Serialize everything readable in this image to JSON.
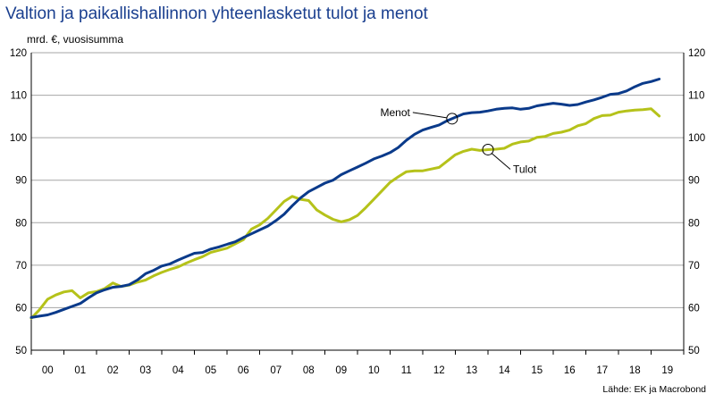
{
  "header": {
    "title": "Valtion ja paikallishallinnon yhteenlasketut tulot ja menot",
    "unit": "mrd. €, vuosisumma",
    "source": "Lähde: EK ja Macrobond"
  },
  "colors": {
    "menot": "#0a3a8a",
    "tulot": "#b5c21a",
    "grid": "#a6a6a6",
    "title": "#1a3f8f"
  },
  "chart_data": {
    "type": "line",
    "title": "Valtion ja paikallishallinnon yhteenlasketut tulot ja menot",
    "ylabel": "mrd. €, vuosisumma",
    "ylim": [
      50,
      120
    ],
    "yticks": [
      50,
      60,
      70,
      80,
      90,
      100,
      110,
      120
    ],
    "xlim": [
      2000,
      2020
    ],
    "xtick_labels": [
      "00",
      "01",
      "02",
      "03",
      "04",
      "05",
      "06",
      "07",
      "08",
      "09",
      "10",
      "11",
      "12",
      "13",
      "14",
      "15",
      "16",
      "17",
      "18",
      "19"
    ],
    "grid": true,
    "series": [
      {
        "name": "Menot",
        "x": [
          2000.0,
          2000.25,
          2000.5,
          2000.75,
          2001.0,
          2001.25,
          2001.5,
          2001.75,
          2002.0,
          2002.25,
          2002.5,
          2002.75,
          2003.0,
          2003.25,
          2003.5,
          2003.75,
          2004.0,
          2004.25,
          2004.5,
          2004.75,
          2005.0,
          2005.25,
          2005.5,
          2005.75,
          2006.0,
          2006.25,
          2006.5,
          2006.75,
          2007.0,
          2007.25,
          2007.5,
          2007.75,
          2008.0,
          2008.25,
          2008.5,
          2008.75,
          2009.0,
          2009.25,
          2009.5,
          2009.75,
          2010.0,
          2010.25,
          2010.5,
          2010.75,
          2011.0,
          2011.25,
          2011.5,
          2011.75,
          2012.0,
          2012.25,
          2012.5,
          2012.75,
          2013.0,
          2013.25,
          2013.5,
          2013.75,
          2014.0,
          2014.25,
          2014.5,
          2014.75,
          2015.0,
          2015.25,
          2015.5,
          2015.75,
          2016.0,
          2016.25,
          2016.5,
          2016.75,
          2017.0,
          2017.25,
          2017.5,
          2017.75,
          2018.0,
          2018.25,
          2018.5,
          2018.75,
          2019.0,
          2019.25
        ],
        "y": [
          57.7,
          58.0,
          58.3,
          58.9,
          59.6,
          60.3,
          61.0,
          62.3,
          63.5,
          64.2,
          64.8,
          65.0,
          65.4,
          66.5,
          68.0,
          68.8,
          69.8,
          70.3,
          71.2,
          72.0,
          72.8,
          73.0,
          73.8,
          74.3,
          74.9,
          75.5,
          76.5,
          77.4,
          78.3,
          79.2,
          80.5,
          82.0,
          84.0,
          85.8,
          87.3,
          88.3,
          89.3,
          90.0,
          91.3,
          92.2,
          93.1,
          94.0,
          95.0,
          95.7,
          96.5,
          97.7,
          99.4,
          100.8,
          101.8,
          102.4,
          103.0,
          104.0,
          104.8,
          105.6,
          105.9,
          106.0,
          106.3,
          106.7,
          106.9,
          107.0,
          106.7,
          106.9,
          107.5,
          107.8,
          108.1,
          107.9,
          107.6,
          107.8,
          108.4,
          108.9,
          109.5,
          110.2,
          110.4,
          111.0,
          112.0,
          112.8,
          113.2,
          113.8
        ]
      },
      {
        "name": "Tulot",
        "x": [
          2000.0,
          2000.25,
          2000.5,
          2000.75,
          2001.0,
          2001.25,
          2001.5,
          2001.75,
          2002.0,
          2002.25,
          2002.5,
          2002.75,
          2003.0,
          2003.25,
          2003.5,
          2003.75,
          2004.0,
          2004.25,
          2004.5,
          2004.75,
          2005.0,
          2005.25,
          2005.5,
          2005.75,
          2006.0,
          2006.25,
          2006.5,
          2006.75,
          2007.0,
          2007.25,
          2007.5,
          2007.75,
          2008.0,
          2008.25,
          2008.5,
          2008.75,
          2009.0,
          2009.25,
          2009.5,
          2009.75,
          2010.0,
          2010.25,
          2010.5,
          2010.75,
          2011.0,
          2011.25,
          2011.5,
          2011.75,
          2012.0,
          2012.25,
          2012.5,
          2012.75,
          2013.0,
          2013.25,
          2013.5,
          2013.75,
          2014.0,
          2014.25,
          2014.5,
          2014.75,
          2015.0,
          2015.25,
          2015.5,
          2015.75,
          2016.0,
          2016.25,
          2016.5,
          2016.75,
          2017.0,
          2017.25,
          2017.5,
          2017.75,
          2018.0,
          2018.25,
          2018.5,
          2018.75,
          2019.0,
          2019.25
        ],
        "y": [
          57.5,
          59.5,
          62.0,
          63.0,
          63.7,
          64.0,
          62.3,
          63.5,
          63.8,
          64.5,
          65.8,
          65.0,
          65.3,
          66.0,
          66.5,
          67.5,
          68.3,
          69.0,
          69.6,
          70.5,
          71.3,
          72.0,
          73.0,
          73.5,
          74.0,
          75.0,
          76.0,
          78.5,
          79.5,
          81.0,
          83.0,
          85.0,
          86.2,
          85.5,
          85.2,
          83.0,
          81.8,
          80.8,
          80.2,
          80.7,
          81.7,
          83.5,
          85.5,
          87.5,
          89.5,
          90.8,
          92.0,
          92.2,
          92.2,
          92.6,
          93.0,
          94.5,
          96.0,
          96.8,
          97.3,
          97.0,
          97.2,
          97.3,
          97.5,
          98.5,
          99.0,
          99.2,
          100.1,
          100.3,
          101.0,
          101.3,
          101.8,
          102.8,
          103.3,
          104.5,
          105.2,
          105.3,
          106.0,
          106.3,
          106.5,
          106.6,
          106.8,
          105.1
        ]
      }
    ],
    "annotations": [
      {
        "label": "Menot",
        "series": "Menot",
        "at_x": 2012.9
      },
      {
        "label": "Tulot",
        "series": "Tulot",
        "at_x": 2014.0
      }
    ]
  }
}
